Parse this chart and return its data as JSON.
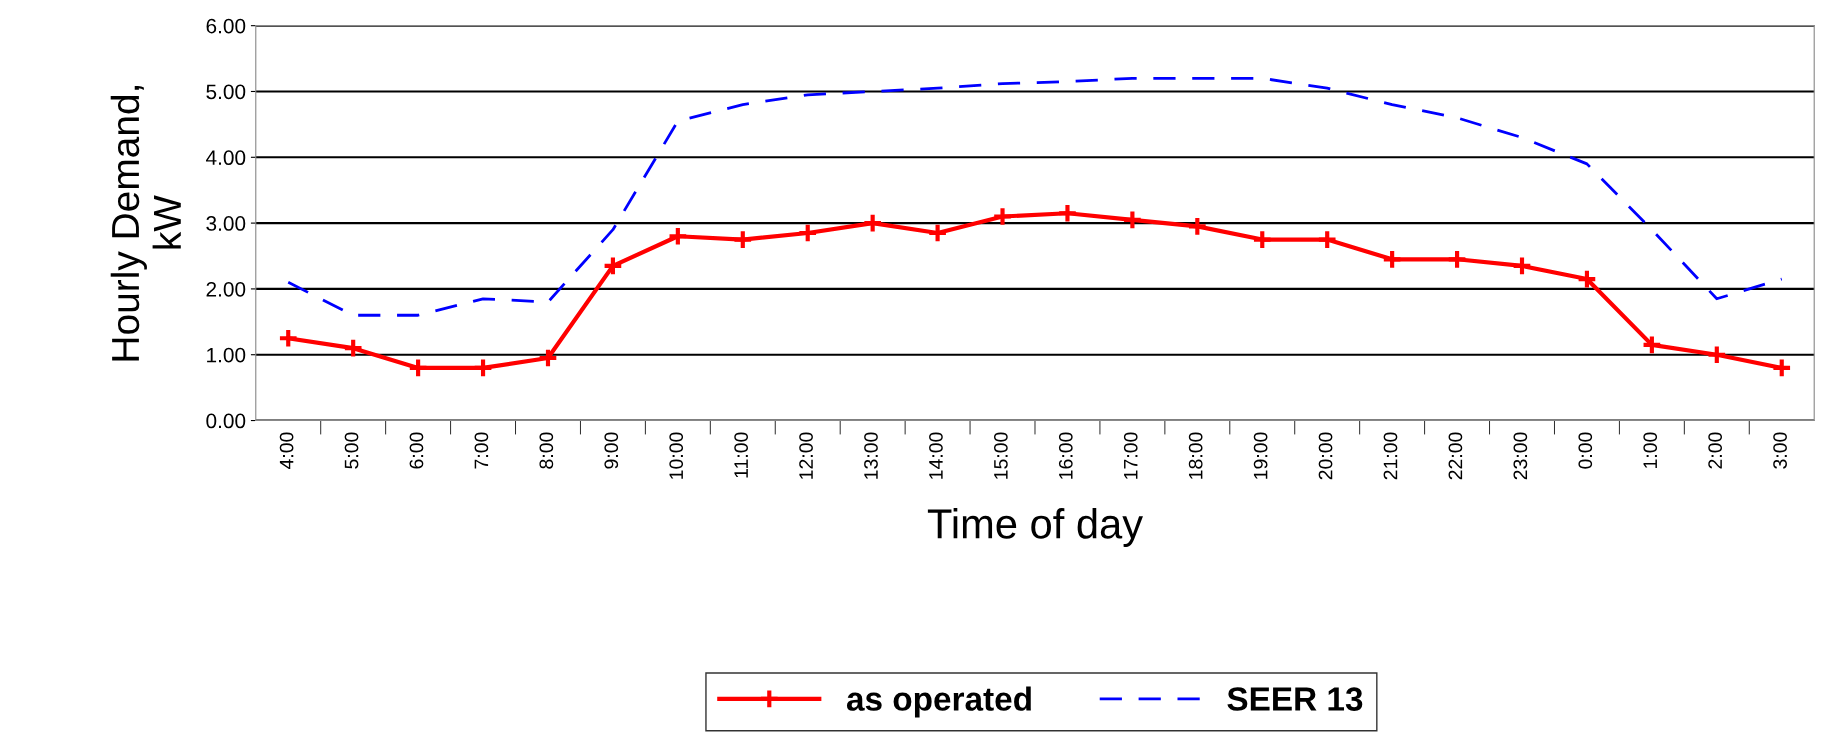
{
  "chart_data": {
    "type": "line",
    "xlabel": "Time of day",
    "ylabel": "Hourly Demand,\nkW",
    "categories": [
      "4:00",
      "5:00",
      "6:00",
      "7:00",
      "8:00",
      "9:00",
      "10:00",
      "11:00",
      "12:00",
      "13:00",
      "14:00",
      "15:00",
      "16:00",
      "17:00",
      "18:00",
      "19:00",
      "20:00",
      "21:00",
      "22:00",
      "23:00",
      "0:00",
      "1:00",
      "2:00",
      "3:00"
    ],
    "series": [
      {
        "name": "as operated",
        "color": "#ff0000",
        "marker": "cross",
        "line_style": "solid",
        "values": [
          1.25,
          1.1,
          0.8,
          0.8,
          0.95,
          2.35,
          2.8,
          2.75,
          2.85,
          3.0,
          2.85,
          3.1,
          3.15,
          3.05,
          2.95,
          2.75,
          2.75,
          2.45,
          2.45,
          2.35,
          2.15,
          1.15,
          1.0,
          0.8
        ]
      },
      {
        "name": "SEER 13",
        "color": "#0000ff",
        "marker": "none",
        "line_style": "dashed",
        "values": [
          2.1,
          1.6,
          1.6,
          1.85,
          1.8,
          2.9,
          4.55,
          4.8,
          4.95,
          5.0,
          5.05,
          5.12,
          5.15,
          5.2,
          5.2,
          5.2,
          5.05,
          4.8,
          4.6,
          4.3,
          3.9,
          2.9,
          1.85,
          2.15
        ]
      }
    ],
    "ylim": [
      0,
      6
    ],
    "yticks": [
      {
        "value": 0,
        "label": "0.00"
      },
      {
        "value": 1,
        "label": "1.00"
      },
      {
        "value": 2,
        "label": "2.00"
      },
      {
        "value": 3,
        "label": "3.00"
      },
      {
        "value": 4,
        "label": "4.00"
      },
      {
        "value": 5,
        "label": "5.00"
      },
      {
        "value": 6,
        "label": "6.00"
      }
    ],
    "grid": "y",
    "legend": "bottom"
  }
}
